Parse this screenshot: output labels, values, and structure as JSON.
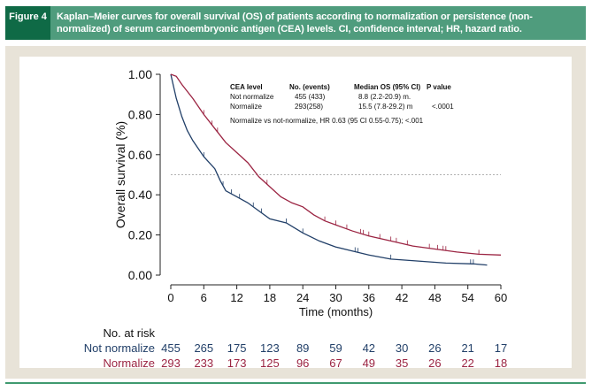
{
  "figure": {
    "label": "Figure 4",
    "caption": "Kaplan–Meier curves for overall survival (OS) of patients according to normalization or persistence (non-normalized) of serum carcinoembryonic antigen (CEA) levels. CI, confidence interval; HR, hazard ratio."
  },
  "colors": {
    "not_normalize": "#213f68",
    "normalize": "#9b2442",
    "header": "#4f9c7d",
    "header_label": "#0f6a46",
    "panel": "#e8e3d8"
  },
  "chart_data": {
    "type": "line",
    "subtype": "kaplan-meier step",
    "xlabel": "Time (months)",
    "ylabel": "Overall survival (%)",
    "xlim": [
      0,
      60
    ],
    "ylim": [
      0,
      1
    ],
    "xticks": [
      "0",
      "6",
      "12",
      "18",
      "24",
      "30",
      "36",
      "42",
      "48",
      "54",
      "60"
    ],
    "yticks": [
      "0.00",
      "0.20",
      "0.40",
      "0.60",
      "0.80",
      "1.00"
    ],
    "reference_line": {
      "y": 0.5,
      "style": "dotted"
    },
    "grid": false,
    "legend_table": {
      "headers": [
        "CEA level",
        "No. (events)",
        "Median OS (95% CI)",
        "P value"
      ],
      "rows": [
        [
          "Not normalize",
          "455 (433)",
          "8.8 (2.2-20.9) m.",
          ""
        ],
        [
          "Normalize",
          "293(258)",
          "15.5 (7.8-29.2) m",
          "<.0001"
        ]
      ]
    },
    "annotation": "Normalize vs not-normalize, HR 0.63 (95 CI 0.55-0.75); <.001",
    "series": [
      {
        "name": "Not normalize",
        "x": [
          0,
          1,
          2,
          3,
          4,
          6,
          8,
          9,
          10,
          12,
          14,
          16,
          18,
          21,
          24,
          27,
          30,
          33,
          36,
          40,
          45,
          50,
          55,
          57.5
        ],
        "y": [
          1.0,
          0.88,
          0.79,
          0.72,
          0.67,
          0.59,
          0.53,
          0.47,
          0.42,
          0.39,
          0.36,
          0.32,
          0.28,
          0.26,
          0.21,
          0.17,
          0.14,
          0.12,
          0.1,
          0.08,
          0.07,
          0.06,
          0.056,
          0.05
        ],
        "censored": [
          6,
          9.5,
          11,
          12.5,
          15,
          16.5,
          21,
          24,
          33.5,
          34,
          40,
          54.5,
          55
        ]
      },
      {
        "name": "Normalize",
        "x": [
          0,
          1,
          2,
          4,
          6,
          8,
          10,
          12,
          14,
          16,
          18,
          20,
          22,
          24,
          26,
          28,
          30,
          33,
          36,
          40,
          44,
          48,
          52,
          56,
          60
        ],
        "y": [
          1.0,
          0.99,
          0.95,
          0.88,
          0.8,
          0.73,
          0.66,
          0.61,
          0.56,
          0.49,
          0.44,
          0.39,
          0.36,
          0.34,
          0.3,
          0.27,
          0.25,
          0.22,
          0.195,
          0.17,
          0.145,
          0.13,
          0.115,
          0.104,
          0.1
        ],
        "censored": [
          6,
          7.5,
          8.5,
          17.5,
          28,
          30,
          32,
          34.5,
          35,
          36,
          38,
          40,
          41,
          43,
          47,
          48.5,
          49.5,
          50,
          56
        ]
      }
    ],
    "risk_table": {
      "title": "No. at risk",
      "times": [
        "0",
        "6",
        "12",
        "18",
        "24",
        "30",
        "36",
        "42",
        "48",
        "54",
        "60"
      ],
      "rows": [
        {
          "label": "Not normalize",
          "values": [
            "455",
            "265",
            "175",
            "123",
            "89",
            "59",
            "42",
            "30",
            "26",
            "21",
            "17"
          ]
        },
        {
          "label": "Normalize",
          "values": [
            "293",
            "233",
            "173",
            "125",
            "96",
            "67",
            "49",
            "35",
            "26",
            "22",
            "18"
          ]
        }
      ]
    }
  }
}
